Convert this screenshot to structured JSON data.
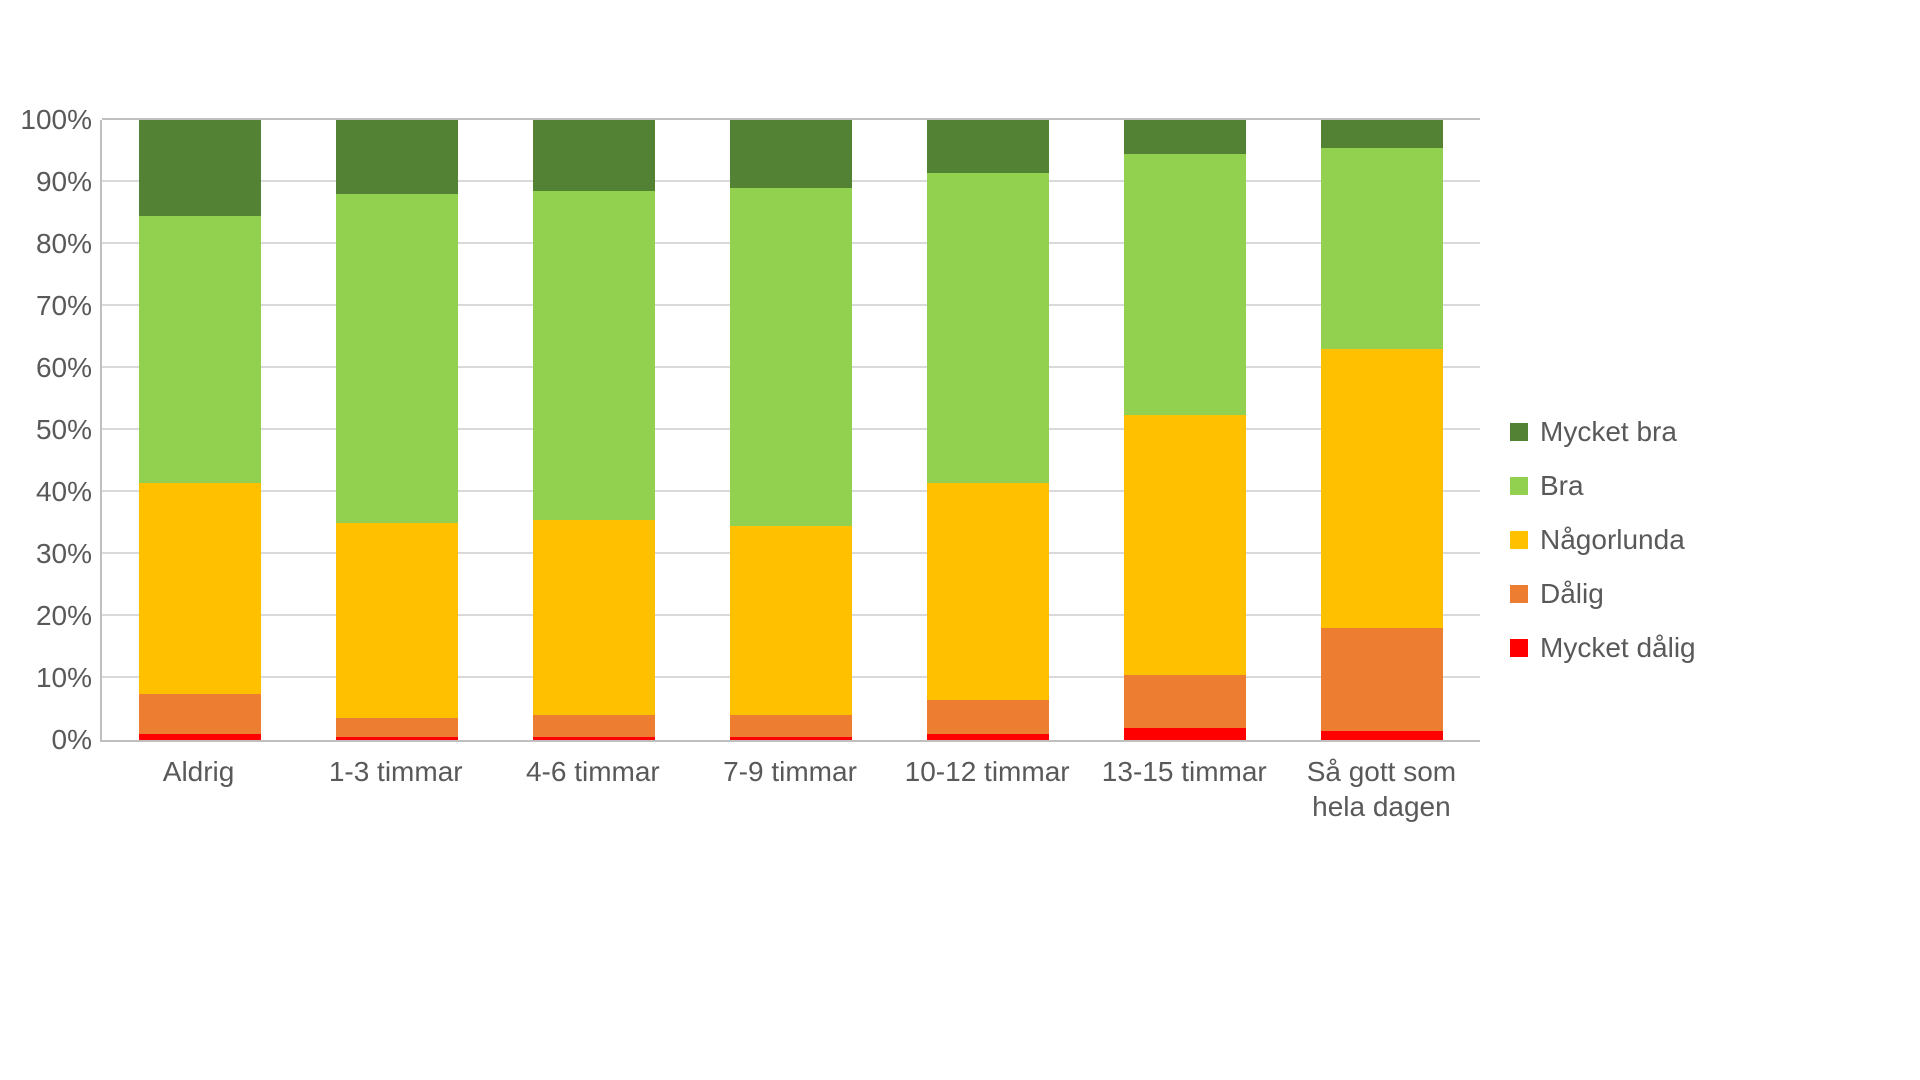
{
  "chart": {
    "type": "stacked-bar-100pct",
    "background_color": "#ffffff",
    "axis_color": "#bfbfbf",
    "grid_color": "#d9d9d9",
    "label_color": "#595959",
    "label_fontsize": 28,
    "bar_width_pct": 62,
    "ylim": [
      0,
      100
    ],
    "ytick_step": 10,
    "y_ticks": [
      "0%",
      "10%",
      "20%",
      "30%",
      "40%",
      "50%",
      "60%",
      "70%",
      "80%",
      "90%",
      "100%"
    ],
    "categories": [
      "Aldrig",
      "1-3 timmar",
      "4-6 timmar",
      "7-9 timmar",
      "10-12 timmar",
      "13-15 timmar",
      "Så gott som hela dagen"
    ],
    "series": [
      {
        "key": "mycket_dalig",
        "label": "Mycket dålig",
        "color": "#ff0000"
      },
      {
        "key": "dalig",
        "label": "Dålig",
        "color": "#ed7d31"
      },
      {
        "key": "nagorlunda",
        "label": "Någorlunda",
        "color": "#ffc000"
      },
      {
        "key": "bra",
        "label": "Bra",
        "color": "#92d050"
      },
      {
        "key": "mycket_bra",
        "label": "Mycket bra",
        "color": "#548235"
      }
    ],
    "legend_order": [
      "mycket_bra",
      "bra",
      "nagorlunda",
      "dalig",
      "mycket_dalig"
    ],
    "data": [
      {
        "mycket_dalig": 1.0,
        "dalig": 6.5,
        "nagorlunda": 34.0,
        "bra": 43.0,
        "mycket_bra": 15.5
      },
      {
        "mycket_dalig": 0.5,
        "dalig": 3.0,
        "nagorlunda": 31.5,
        "bra": 53.0,
        "mycket_bra": 12.0
      },
      {
        "mycket_dalig": 0.5,
        "dalig": 3.5,
        "nagorlunda": 31.5,
        "bra": 53.0,
        "mycket_bra": 11.5
      },
      {
        "mycket_dalig": 0.5,
        "dalig": 3.5,
        "nagorlunda": 30.5,
        "bra": 54.5,
        "mycket_bra": 11.0
      },
      {
        "mycket_dalig": 1.0,
        "dalig": 5.5,
        "nagorlunda": 35.0,
        "bra": 50.0,
        "mycket_bra": 8.5
      },
      {
        "mycket_dalig": 2.0,
        "dalig": 8.5,
        "nagorlunda": 42.0,
        "bra": 42.0,
        "mycket_bra": 5.5
      },
      {
        "mycket_dalig": 1.5,
        "dalig": 16.5,
        "nagorlunda": 45.0,
        "bra": 32.5,
        "mycket_bra": 4.5
      }
    ]
  }
}
